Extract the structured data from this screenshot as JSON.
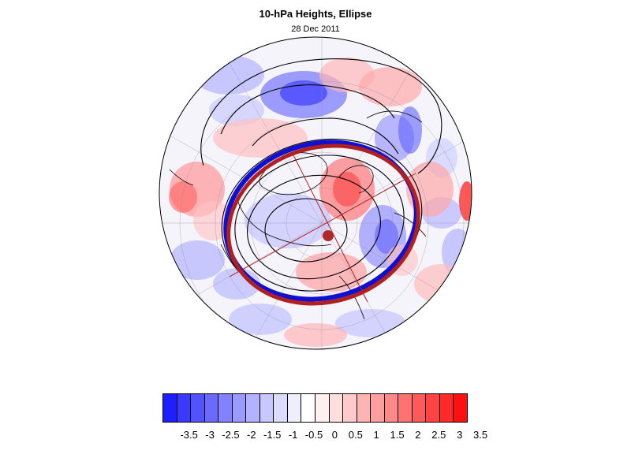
{
  "title": "10-hPa Heights, Ellipse",
  "subtitle": "28 Dec 2011",
  "colorbar": {
    "colors": [
      "#1e1eff",
      "#3a3aff",
      "#5252ff",
      "#6a6aff",
      "#8282ff",
      "#9a9aff",
      "#b2b2ff",
      "#c8c8ff",
      "#dcdcff",
      "#eeeeff",
      "#ffffff",
      "#fff0f0",
      "#ffdede",
      "#ffcaca",
      "#ffb4b4",
      "#ff9e9e",
      "#ff8888",
      "#ff7272",
      "#ff5a5a",
      "#ff4242",
      "#ff2a2a",
      "#ff1010"
    ],
    "labels": [
      "-3.5",
      "-3",
      "-2.5",
      "-2",
      "-1.5",
      "-1",
      "-0.5",
      "0",
      "0.5",
      "1",
      "1.5",
      "2",
      "2.5",
      "3",
      "3.5"
    ]
  },
  "map": {
    "projection": "polar stereographic, north pole",
    "fill_field": "height anomaly (shaded, blue negative / red positive)",
    "contour_field": "10-hPa geopotential height (black contours)",
    "ellipse_colors": {
      "observed": "#1010d0",
      "fitted": "#b02020"
    },
    "centroid_color": "#b02828"
  }
}
